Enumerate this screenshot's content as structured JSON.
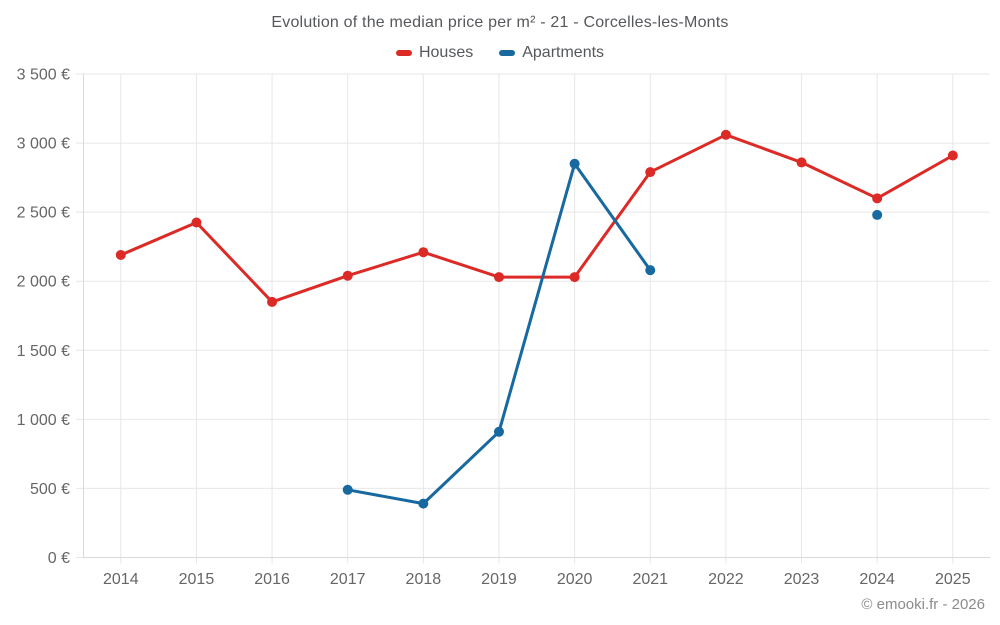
{
  "footer": {
    "copyright": "© emooki.fr - 2026"
  },
  "chart_data": {
    "type": "line",
    "title": "Evolution of the median price per m² - 21 - Corcelles-les-Monts",
    "x": [
      2014,
      2015,
      2016,
      2017,
      2018,
      2019,
      2020,
      2021,
      2022,
      2023,
      2024,
      2025
    ],
    "x_tick_labels": [
      "2014",
      "2015",
      "2016",
      "2017",
      "2018",
      "2019",
      "2020",
      "2021",
      "2022",
      "2023",
      "2024",
      "2025"
    ],
    "y_ticks": [
      {
        "value": 0,
        "label": "0 €"
      },
      {
        "value": 500,
        "label": "500 €"
      },
      {
        "value": 1000,
        "label": "1 000 €"
      },
      {
        "value": 1500,
        "label": "1 500 €"
      },
      {
        "value": 2000,
        "label": "2 000 €"
      },
      {
        "value": 2500,
        "label": "2 500 €"
      },
      {
        "value": 3000,
        "label": "3 000 €"
      },
      {
        "value": 3500,
        "label": "3 500 €"
      }
    ],
    "ylim": [
      0,
      3500
    ],
    "grid": true,
    "legend_position": "top",
    "series": [
      {
        "name": "Houses",
        "color": "#dc2b26",
        "values": [
          2190,
          2425,
          1850,
          2040,
          2210,
          2030,
          2030,
          2790,
          3060,
          2860,
          2600,
          2910
        ]
      },
      {
        "name": "Apartments",
        "color": "#17699f",
        "values": [
          null,
          null,
          null,
          490,
          390,
          910,
          2850,
          2080,
          null,
          null,
          2480,
          null
        ]
      }
    ],
    "colors": {
      "grid": "#e7e7e7",
      "axis": "#d9d9d9",
      "tick_text": "#666666"
    }
  }
}
